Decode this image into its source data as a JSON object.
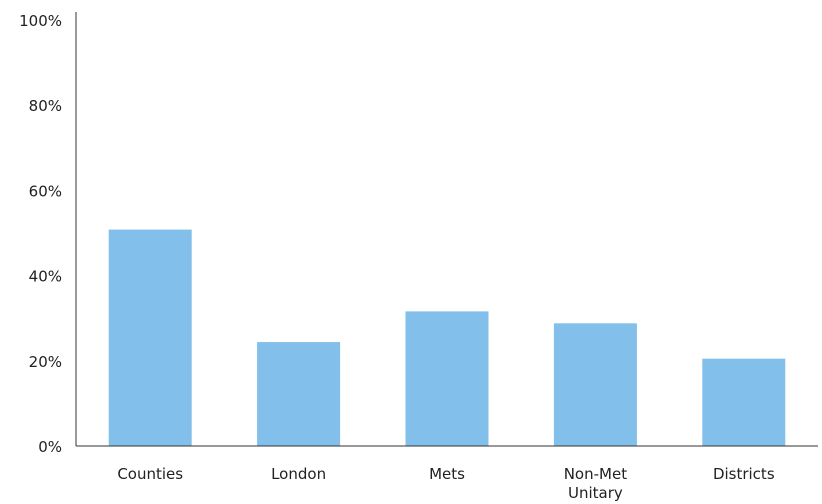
{
  "chart_data": {
    "type": "bar",
    "categories": [
      "Counties",
      "London",
      "Mets",
      "Non-Met Unitary",
      "Districts"
    ],
    "category_label_lines": [
      [
        "Counties"
      ],
      [
        "London"
      ],
      [
        "Mets"
      ],
      [
        "Non-Met",
        "Unitary"
      ],
      [
        "Districts"
      ]
    ],
    "values": [
      50.8,
      24.4,
      31.6,
      28.8,
      20.5
    ],
    "value_unit": "%",
    "ylim": [
      0,
      100
    ],
    "yticks": [
      0,
      20,
      40,
      60,
      80,
      100
    ],
    "ytick_labels": [
      "0%",
      "20%",
      "40%",
      "60%",
      "80%",
      "100%"
    ],
    "title": "",
    "xlabel": "",
    "ylabel": "",
    "grid": false,
    "bar_color": "#82bfea",
    "axis_color": "#333333"
  }
}
